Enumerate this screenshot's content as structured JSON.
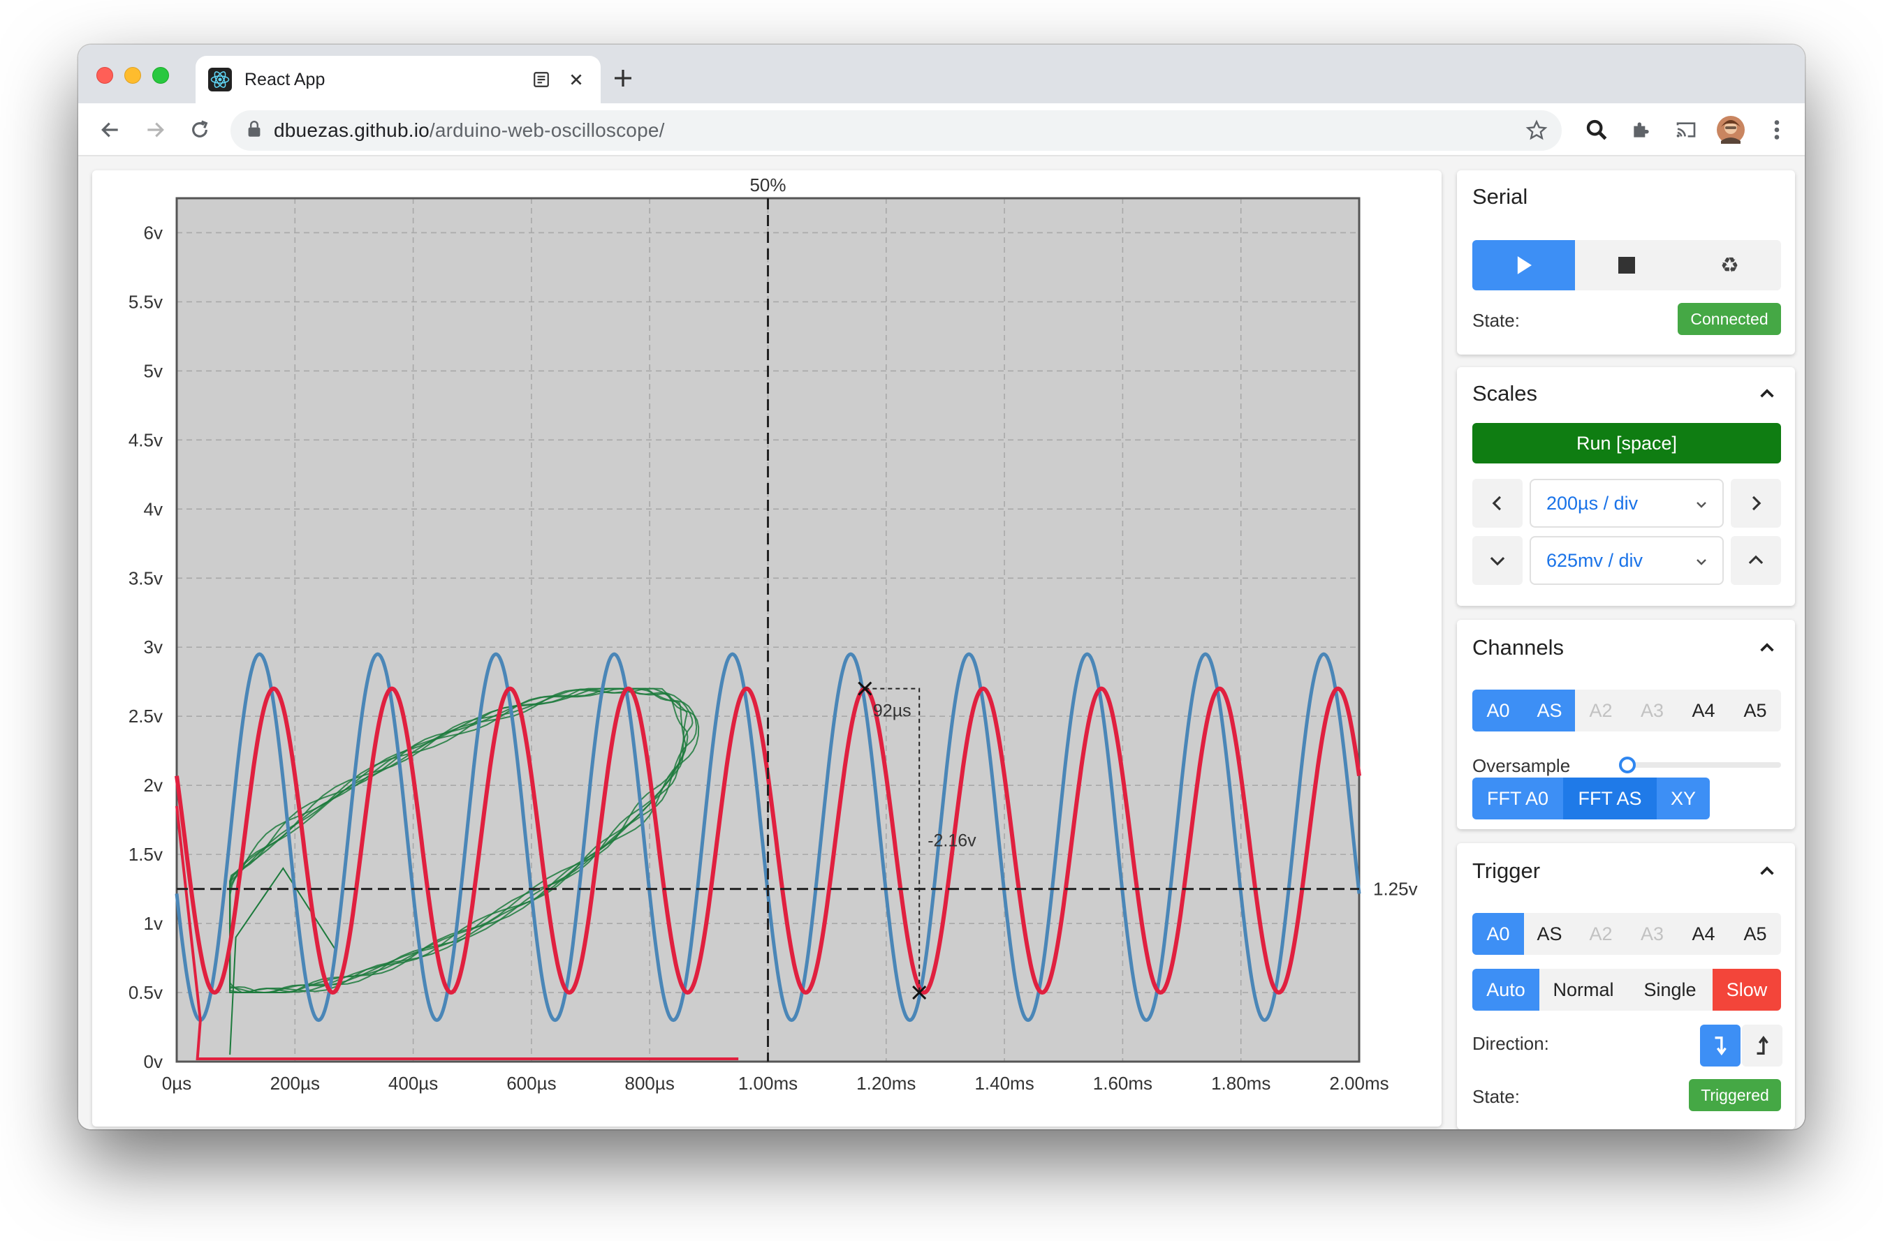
{
  "browser": {
    "tab_title": "React App",
    "url_host": "dbuezas.github.io",
    "url_path": "/arduino-web-oscilloscope/"
  },
  "chart_data": {
    "type": "line",
    "xlabel": "",
    "ylabel": "",
    "x_ticks": [
      "0µs",
      "200µs",
      "400µs",
      "600µs",
      "800µs",
      "1.00ms",
      "1.20ms",
      "1.40ms",
      "1.60ms",
      "1.80ms",
      "2.00ms"
    ],
    "y_ticks": [
      "0v",
      "0.5v",
      "1v",
      "1.5v",
      "2v",
      "2.5v",
      "3v",
      "3.5v",
      "4v",
      "4.5v",
      "5v",
      "5.5v",
      "6v"
    ],
    "xlim_ms": [
      0,
      2.0
    ],
    "ylim_v": [
      0,
      6.25
    ],
    "grid": true,
    "trigger_position_label": "50%",
    "trigger_level_label": "1.25v",
    "trigger_time_ms": 1.0,
    "trigger_level_v": 1.25,
    "series": [
      {
        "color": "#4a86b7",
        "type": "sine",
        "min_v": 0.3,
        "max_v": 2.95,
        "period_ms": 0.2,
        "peak_ms": 0.14
      },
      {
        "color": "#e0203f",
        "type": "sine",
        "min_v": 0.5,
        "max_v": 2.7,
        "period_ms": 0.2,
        "peak_ms": 0.164
      },
      {
        "color": "#1c7a3c",
        "type": "xy-loop",
        "note": ""
      }
    ],
    "measurement": {
      "start": {
        "t_ms": 1.164,
        "v": 2.7
      },
      "end": {
        "t_ms": 1.256,
        "v": 0.5
      },
      "dt_label": "92µs",
      "dv_label": "-2.16v"
    }
  },
  "serial": {
    "title": "Serial",
    "state_label": "State:",
    "state_value": "Connected"
  },
  "scales": {
    "title": "Scales",
    "run_label": "Run [space]",
    "time_div": "200µs / div",
    "volt_div": "625mv / div"
  },
  "channels": {
    "title": "Channels",
    "items": [
      "A0",
      "AS",
      "A2",
      "A3",
      "A4",
      "A5"
    ],
    "oversample_label": "Oversample",
    "oversample_value": 0,
    "modes": [
      "FFT A0",
      "FFT AS",
      "XY"
    ]
  },
  "trigger": {
    "title": "Trigger",
    "channels": [
      "A0",
      "AS",
      "A2",
      "A3",
      "A4",
      "A5"
    ],
    "modes": [
      "Auto",
      "Normal",
      "Single",
      "Slow"
    ],
    "direction_label": "Direction:",
    "state_label": "State:",
    "state_value": "Triggered"
  },
  "colors": {
    "accent": "#3d8ff5",
    "run_button": "#0f7d12",
    "badge_green": "#45a845",
    "slow_red": "#f3453a",
    "plot_bg": "#cdcdcd"
  }
}
